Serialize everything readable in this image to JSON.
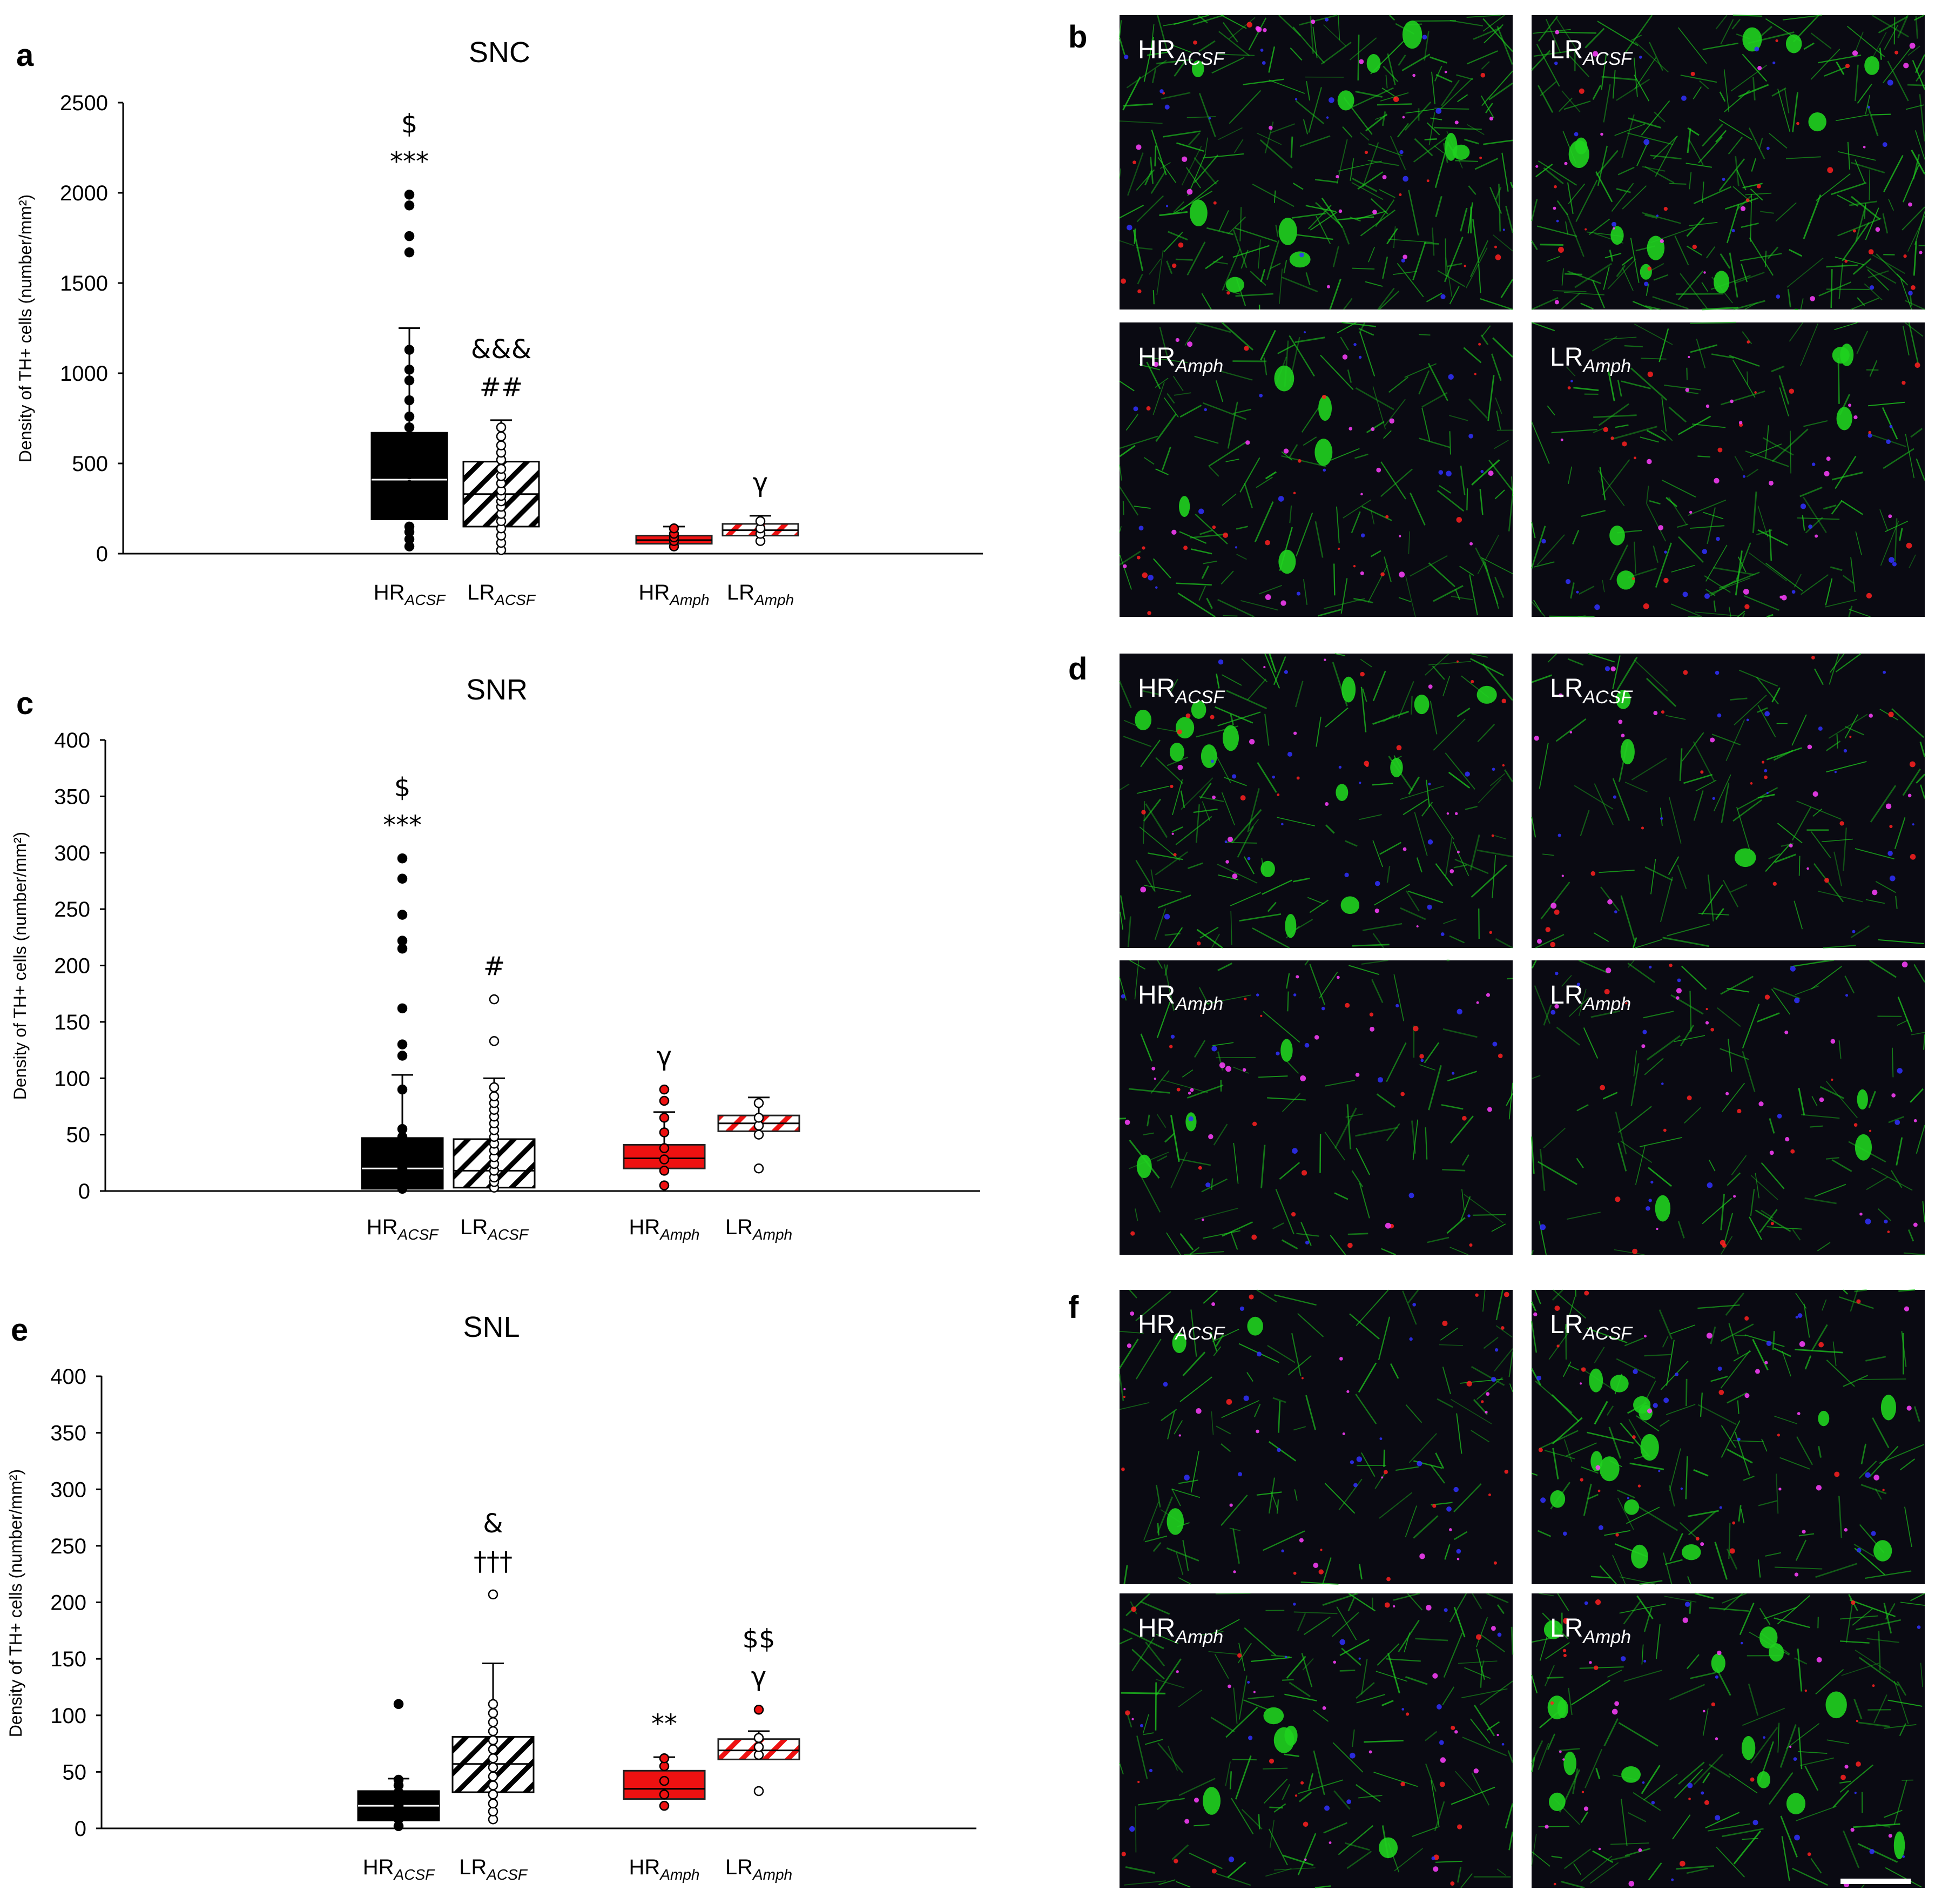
{
  "chart_data": [
    {
      "type": "box",
      "panel": "a",
      "title": "SNC",
      "ylabel": "Density of TH+ cells (number/mm²)",
      "ylim": [
        0,
        2500
      ],
      "yticks": [
        "0",
        "500",
        "1000",
        "1500",
        "2000",
        "2500"
      ],
      "categories": [
        "HR_ACSF",
        "LR_ACSF",
        "HR_Amph",
        "LR_Amph"
      ],
      "boxes": [
        {
          "label_main": "HR",
          "label_sub": "ACSF",
          "style": "black",
          "q1": 190,
          "median": 410,
          "q3": 670,
          "whisker_high": 1250,
          "points": [
            40,
            80,
            120,
            150,
            220,
            300,
            380,
            440,
            520,
            590,
            640,
            700,
            760,
            850,
            960,
            1020,
            1130,
            1670,
            1760,
            1930,
            1990
          ],
          "annotations": [
            "$",
            "***"
          ]
        },
        {
          "label_main": "LR",
          "label_sub": "ACSF",
          "style": "hatch-black",
          "q1": 150,
          "median": 330,
          "q3": 510,
          "whisker_high": 740,
          "points": [
            20,
            60,
            100,
            140,
            180,
            220,
            260,
            290,
            320,
            350,
            390,
            430,
            470,
            520,
            560,
            600,
            650,
            700
          ],
          "annotations": [
            "&&&",
            "##"
          ]
        },
        {
          "label_main": "HR",
          "label_sub": "Amph",
          "style": "red",
          "q1": 55,
          "median": 75,
          "q3": 100,
          "whisker_high": 150,
          "points": [
            40,
            70,
            90,
            110,
            140
          ],
          "annotations": []
        },
        {
          "label_main": "LR",
          "label_sub": "Amph",
          "style": "hatch-red",
          "q1": 100,
          "median": 130,
          "q3": 165,
          "whisker_high": 210,
          "points": [
            70,
            110,
            140,
            180
          ],
          "annotations": [
            "γ"
          ]
        }
      ]
    },
    {
      "type": "box",
      "panel": "c",
      "title": "SNR",
      "ylabel": "Density of TH+ cells (number/mm²)",
      "ylim": [
        0,
        400
      ],
      "yticks": [
        "0",
        "50",
        "100",
        "150",
        "200",
        "250",
        "300",
        "350",
        "400"
      ],
      "categories": [
        "HR_ACSF",
        "LR_ACSF",
        "HR_Amph",
        "LR_Amph"
      ],
      "boxes": [
        {
          "label_main": "HR",
          "label_sub": "ACSF",
          "style": "black",
          "q1": 2,
          "median": 20,
          "q3": 47,
          "whisker_high": 103,
          "points": [
            2,
            10,
            20,
            30,
            40,
            48,
            55,
            90,
            120,
            130,
            162,
            215,
            222,
            245,
            277,
            295
          ],
          "annotations": [
            "$",
            "***"
          ]
        },
        {
          "label_main": "LR",
          "label_sub": "ACSF",
          "style": "hatch-black",
          "q1": 3,
          "median": 18,
          "q3": 46,
          "whisker_high": 100,
          "points": [
            3,
            8,
            12,
            18,
            24,
            30,
            36,
            42,
            48,
            54,
            60,
            66,
            72,
            78,
            84,
            92,
            133,
            170
          ],
          "annotations": [
            "#"
          ]
        },
        {
          "label_main": "HR",
          "label_sub": "Amph",
          "style": "red",
          "q1": 20,
          "median": 29,
          "q3": 41,
          "whisker_high": 70,
          "points": [
            5,
            18,
            28,
            38,
            52,
            65,
            80,
            90
          ],
          "annotations": [
            "γ"
          ]
        },
        {
          "label_main": "LR",
          "label_sub": "Amph",
          "style": "hatch-red",
          "q1": 53,
          "median": 60,
          "q3": 67,
          "whisker_high": 83,
          "points": [
            20,
            50,
            58,
            65,
            78
          ],
          "annotations": []
        }
      ]
    },
    {
      "type": "box",
      "panel": "e",
      "title": "SNL",
      "ylabel": "Density of TH+ cells (number/mm²)",
      "ylim": [
        0,
        400
      ],
      "yticks": [
        "0",
        "50",
        "100",
        "150",
        "200",
        "250",
        "300",
        "350",
        "400"
      ],
      "categories": [
        "HR_ACSF",
        "LR_ACSF",
        "HR_Amph",
        "LR_Amph"
      ],
      "boxes": [
        {
          "label_main": "HR",
          "label_sub": "ACSF",
          "style": "black",
          "q1": 7,
          "median": 20,
          "q3": 33,
          "whisker_high": 44,
          "points": [
            2,
            8,
            14,
            20,
            26,
            32,
            38,
            43,
            110
          ],
          "annotations": []
        },
        {
          "label_main": "LR",
          "label_sub": "ACSF",
          "style": "hatch-black",
          "q1": 32,
          "median": 57,
          "q3": 81,
          "whisker_high": 146,
          "points": [
            8,
            15,
            22,
            30,
            38,
            46,
            54,
            62,
            70,
            78,
            86,
            94,
            102,
            110,
            207
          ],
          "annotations": [
            "&",
            "†††"
          ]
        },
        {
          "label_main": "HR",
          "label_sub": "Amph",
          "style": "red",
          "q1": 26,
          "median": 35,
          "q3": 51,
          "whisker_high": 63,
          "points": [
            20,
            30,
            42,
            55,
            62
          ],
          "annotations": [
            "**"
          ]
        },
        {
          "label_main": "LR",
          "label_sub": "Amph",
          "style": "hatch-red",
          "q1": 61,
          "median": 69,
          "q3": 79,
          "whisker_high": 86,
          "points": [
            33,
            65,
            72,
            80,
            105
          ],
          "annotations": [
            "$$",
            "γ"
          ]
        }
      ]
    }
  ],
  "image_panels": [
    {
      "label": "b",
      "images": [
        {
          "main": "HR",
          "sub": "ACSF",
          "tone": "dense"
        },
        {
          "main": "LR",
          "sub": "ACSF",
          "tone": "dense"
        },
        {
          "main": "HR",
          "sub": "Amph",
          "tone": "mixed"
        },
        {
          "main": "LR",
          "sub": "Amph",
          "tone": "mixed"
        }
      ]
    },
    {
      "label": "d",
      "images": [
        {
          "main": "HR",
          "sub": "ACSF",
          "tone": "cells"
        },
        {
          "main": "LR",
          "sub": "ACSF",
          "tone": "sparse"
        },
        {
          "main": "HR",
          "sub": "Amph",
          "tone": "sparse"
        },
        {
          "main": "LR",
          "sub": "Amph",
          "tone": "sparse"
        }
      ]
    },
    {
      "label": "f",
      "images": [
        {
          "main": "HR",
          "sub": "ACSF",
          "tone": "sparse"
        },
        {
          "main": "LR",
          "sub": "ACSF",
          "tone": "cells"
        },
        {
          "main": "HR",
          "sub": "Amph",
          "tone": "mixed"
        },
        {
          "main": "LR",
          "sub": "Amph",
          "tone": "cells"
        }
      ]
    }
  ],
  "colors": {
    "black": "#000000",
    "red": "#ee1111",
    "micro_bg": "#0a0a12",
    "micro_green": "#1fd21f",
    "micro_red": "#ff2020",
    "micro_blue": "#3030ff",
    "micro_magenta": "#ff40ff"
  }
}
